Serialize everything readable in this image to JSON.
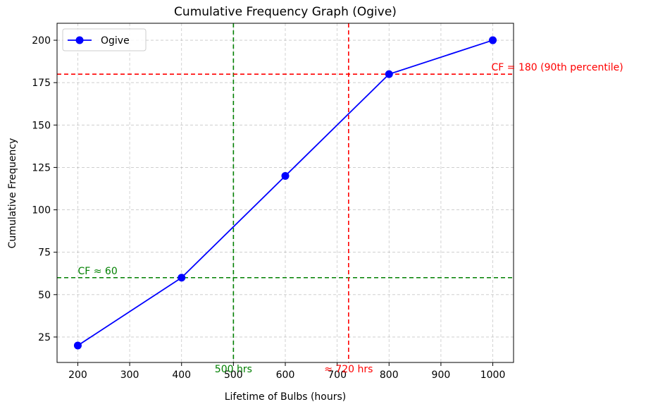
{
  "chart_data": {
    "type": "line",
    "title": "Cumulative Frequency Graph (Ogive)",
    "xlabel": "Lifetime of Bulbs (hours)",
    "ylabel": "Cumulative Frequency",
    "xlim": [
      160,
      1040
    ],
    "ylim": [
      10,
      210
    ],
    "x_ticks": [
      200,
      300,
      400,
      500,
      600,
      700,
      800,
      900,
      1000
    ],
    "y_ticks": [
      25,
      50,
      75,
      100,
      125,
      150,
      175,
      200
    ],
    "grid": true,
    "legend_position": "top-left",
    "series": [
      {
        "name": "Ogive",
        "color": "#0000ff",
        "x": [
          200,
          400,
          600,
          800,
          1000
        ],
        "y": [
          20,
          60,
          120,
          180,
          200
        ]
      }
    ],
    "reference_lines": [
      {
        "orientation": "vertical",
        "value": 500,
        "color": "#008000",
        "style": "dashed"
      },
      {
        "orientation": "horizontal",
        "value": 60,
        "color": "#008000",
        "style": "dashed"
      },
      {
        "orientation": "vertical",
        "value": 722,
        "color": "#ff0000",
        "style": "dashed"
      },
      {
        "orientation": "horizontal",
        "value": 180,
        "color": "#ff0000",
        "style": "dashed"
      }
    ],
    "annotations": [
      {
        "text": "500 hrs",
        "x": 500,
        "color": "#008000",
        "anchor": "below-x-axis"
      },
      {
        "text": "CF ≈ 60",
        "x": 200,
        "y": 60,
        "color": "#008000"
      },
      {
        "text": "≈ 720 hrs",
        "x": 722,
        "color": "#ff0000",
        "anchor": "below-x-axis"
      },
      {
        "text": "CF = 180 (90th percentile)",
        "x": 1000,
        "y": 180,
        "color": "#ff0000"
      }
    ]
  }
}
